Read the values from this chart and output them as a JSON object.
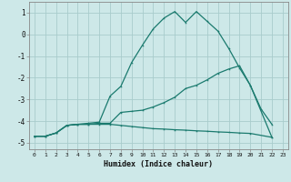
{
  "xlabel": "Humidex (Indice chaleur)",
  "bg_color": "#cde8e8",
  "grid_color": "#a8cccc",
  "line_color": "#1a7a6e",
  "xlim": [
    -0.5,
    23.5
  ],
  "ylim": [
    -5.3,
    1.5
  ],
  "yticks": [
    1,
    0,
    -1,
    -2,
    -3,
    -4,
    -5
  ],
  "xticks": [
    0,
    1,
    2,
    3,
    4,
    5,
    6,
    7,
    8,
    9,
    10,
    11,
    12,
    13,
    14,
    15,
    16,
    17,
    18,
    19,
    20,
    21,
    22,
    23
  ],
  "line1_x": [
    0,
    1,
    2,
    3,
    4,
    5,
    6,
    7,
    8,
    9,
    10,
    11,
    12,
    13,
    14,
    15,
    16,
    17,
    18,
    19,
    20,
    22
  ],
  "line1_y": [
    -4.7,
    -4.7,
    -4.55,
    -4.2,
    -4.15,
    -4.15,
    -4.15,
    -4.15,
    -4.2,
    -4.25,
    -4.3,
    -4.35,
    -4.37,
    -4.4,
    -4.42,
    -4.45,
    -4.47,
    -4.5,
    -4.52,
    -4.55,
    -4.57,
    -4.75
  ],
  "line2_x": [
    0,
    1,
    2,
    3,
    4,
    5,
    6,
    7,
    8,
    9,
    10,
    11,
    12,
    13,
    14,
    15,
    16,
    17,
    18,
    19,
    20,
    22
  ],
  "line2_y": [
    -4.7,
    -4.7,
    -4.55,
    -4.2,
    -4.15,
    -4.15,
    -4.1,
    -4.1,
    -3.6,
    -3.55,
    -3.5,
    -3.35,
    -3.15,
    -2.9,
    -2.5,
    -2.35,
    -2.1,
    -1.8,
    -1.6,
    -1.45,
    -2.35,
    -4.75
  ],
  "line3_x": [
    0,
    1,
    2,
    3,
    4,
    5,
    6,
    7,
    8,
    9,
    10,
    11,
    12,
    13,
    14,
    15,
    16,
    17,
    18,
    19,
    20,
    21,
    22
  ],
  "line3_y": [
    -4.7,
    -4.7,
    -4.55,
    -4.2,
    -4.15,
    -4.1,
    -4.05,
    -2.85,
    -2.4,
    -1.3,
    -0.5,
    0.25,
    0.75,
    1.05,
    0.55,
    1.05,
    0.6,
    0.15,
    -0.65,
    -1.55,
    -2.35,
    -3.45,
    -4.15
  ]
}
